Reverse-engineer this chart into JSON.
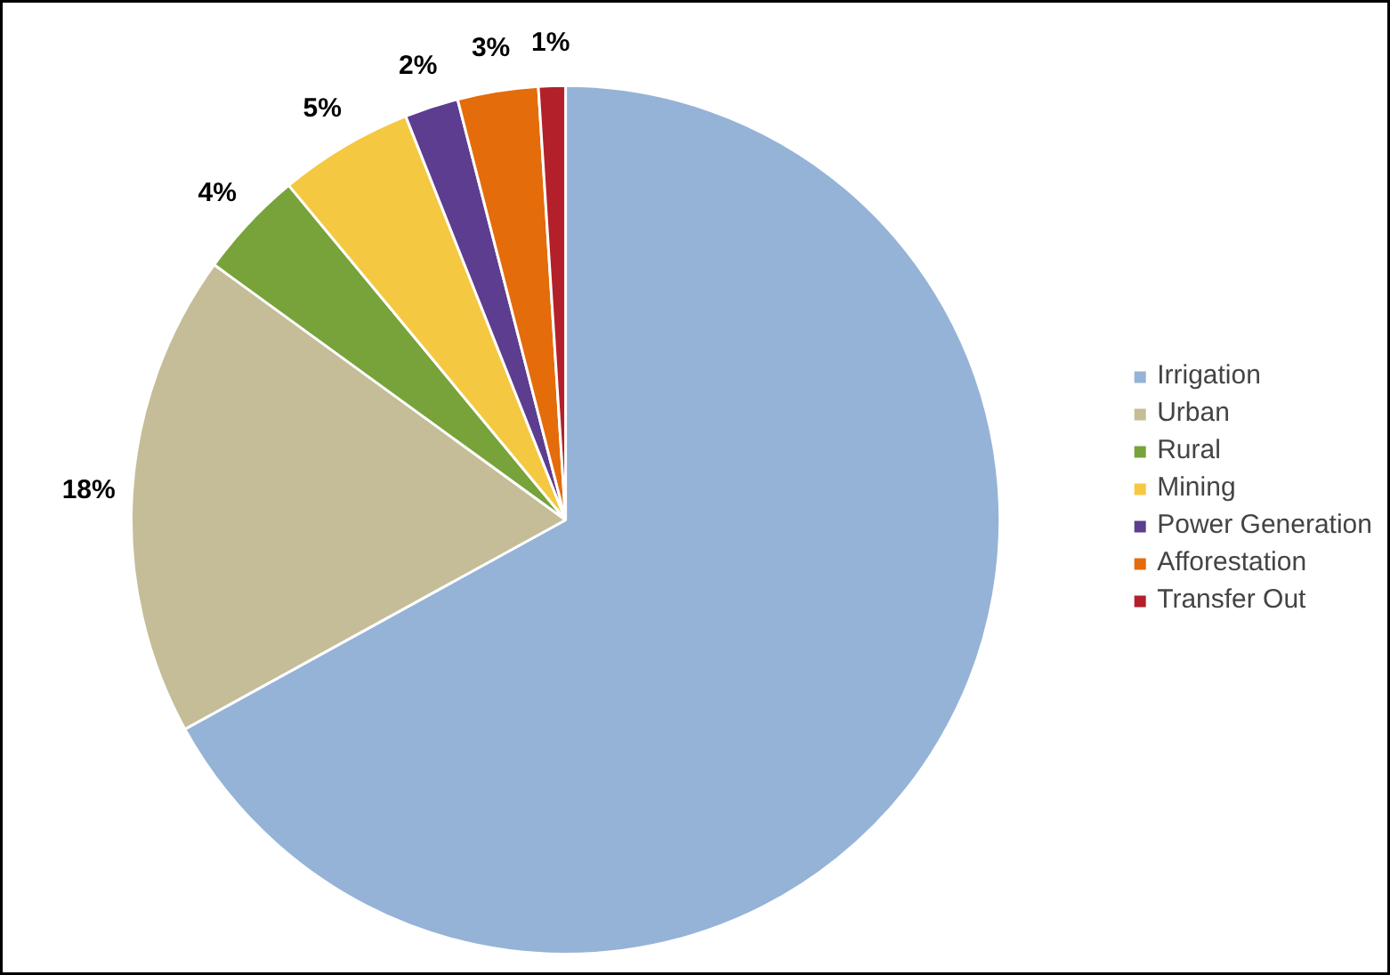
{
  "chart_data": {
    "type": "pie",
    "categories": [
      "Irrigation",
      "Urban",
      "Rural",
      "Mining",
      "Power Generation",
      "Afforestation",
      "Transfer Out"
    ],
    "values": [
      67,
      18,
      4,
      5,
      2,
      3,
      1
    ],
    "colors": [
      "#95b3d7",
      "#c4bd97",
      "#77a33a",
      "#f5c842",
      "#5c3d8f",
      "#e46c0a",
      "#b3202a"
    ],
    "value_labels": [
      null,
      "18%",
      "4%",
      "5%",
      "2%",
      "3%",
      "1%"
    ],
    "legend": "right"
  }
}
